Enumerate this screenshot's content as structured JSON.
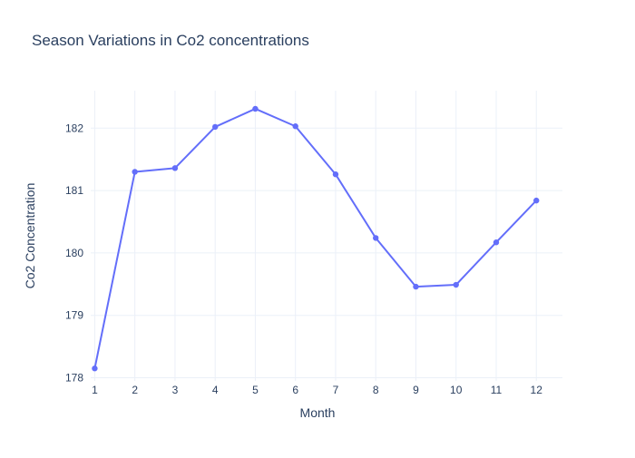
{
  "chart_data": {
    "type": "line",
    "title": "Season Variations in Co2 concentrations",
    "xlabel": "Month",
    "ylabel": "Co2 Concentration",
    "x": [
      1,
      2,
      3,
      4,
      5,
      6,
      7,
      8,
      9,
      10,
      11,
      12
    ],
    "series": [
      {
        "values": [
          178.15,
          181.3,
          181.36,
          182.02,
          182.31,
          182.03,
          181.26,
          180.24,
          179.46,
          179.49,
          180.17,
          180.84
        ]
      }
    ],
    "xticks": [
      "1",
      "2",
      "3",
      "4",
      "5",
      "6",
      "7",
      "8",
      "9",
      "10",
      "11",
      "12"
    ],
    "yticks": [
      "178",
      "179",
      "180",
      "181",
      "182"
    ],
    "ytick_values": [
      178,
      179,
      180,
      181,
      182
    ],
    "xlim": [
      0.9,
      12.65
    ],
    "ylim": [
      177.95,
      182.6
    ],
    "grid": true,
    "colors": {
      "line": "#636efa",
      "grid": "#ebf0f8",
      "text": "#2a3f5f",
      "background": "#ffffff"
    }
  }
}
